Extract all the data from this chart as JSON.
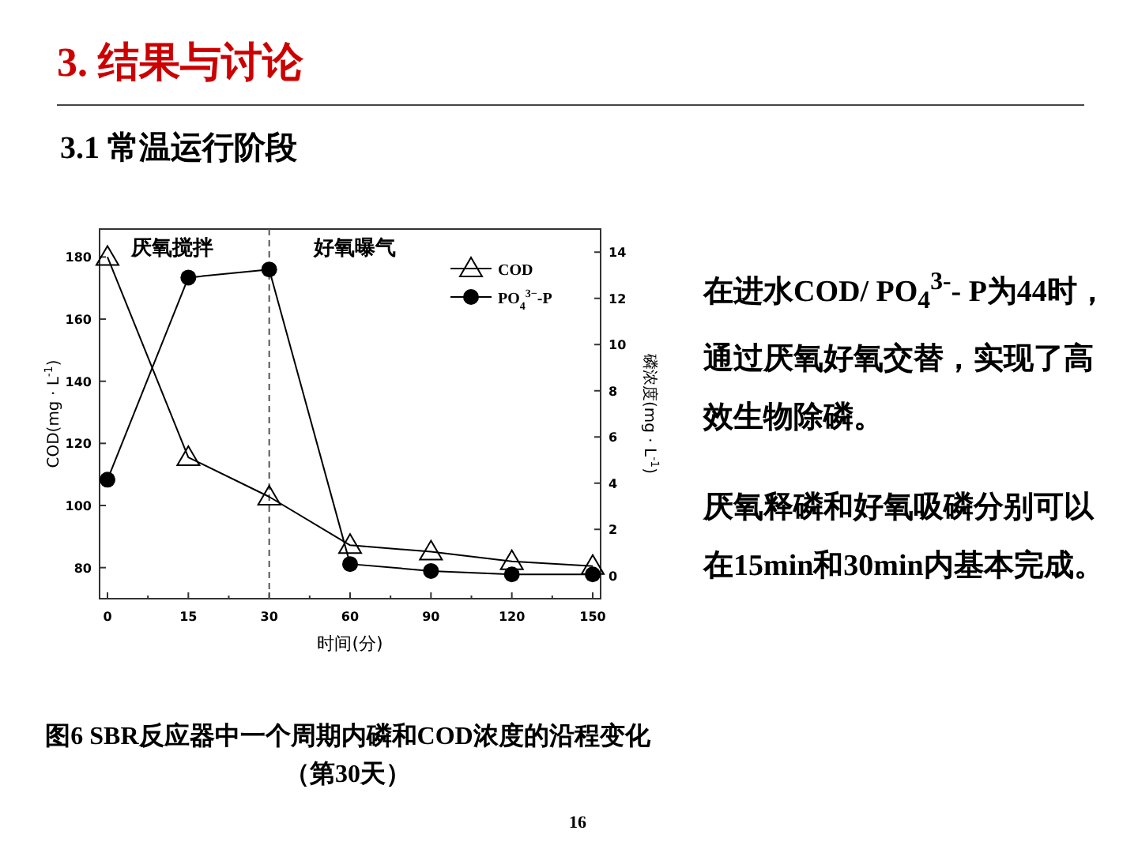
{
  "chart_data": {
    "type": "line",
    "title": "3. 结果与讨论",
    "subtitle": "3.1 常温运行阶段",
    "xlabel": "时间(分)",
    "ylabel": "COD(mg · L$^{-1}$)",
    "y2label": "磷浓度(mg · L$^{-1}$)",
    "categories": [
      "0",
      "15",
      "30",
      "60",
      "90",
      "120",
      "150"
    ],
    "series": [
      {
        "name": "COD",
        "color": "#000000",
        "marker": "triangle",
        "values": [
          180,
          115.5,
          102.8,
          87.2,
          85.1,
          82,
          80.5
        ]
      },
      {
        "name": "PO$_{4}$$^{3−}$-P",
        "color": "#000000",
        "marker": "circle",
        "axis": "y2",
        "values": [
          4.15,
          12.9,
          13.25,
          0.5,
          0.2,
          0.05,
          0.05
        ]
      }
    ],
    "ylim": [
      70,
      189
    ],
    "yticks": [
      80,
      100,
      120,
      140,
      160,
      180
    ],
    "y2lim": [
      -1,
      15
    ],
    "y2ticks": [
      0,
      2,
      4,
      6,
      8,
      10,
      12,
      14
    ],
    "ref_lines": [
      {
        "axis": "x",
        "value": "30",
        "line_style": "dashed",
        "color": "#555555"
      }
    ],
    "legend": "top right",
    "line_style": "solid",
    "grid": false,
    "annotations": [
      "厌氧搅拌",
      "好氧曝气",
      "在进水COD/ PO$_{4}$$^{3-}$- P为44时，通过厌氧好氧交替，实现了高效生物除磷。",
      "厌氧释磷和好氧吸磷分别可以在15min和30min内基本完成。",
      "图6 SBR反应器中一个周期内磷和COD浓度的沿程变化（第30天）",
      "16"
    ]
  }
}
